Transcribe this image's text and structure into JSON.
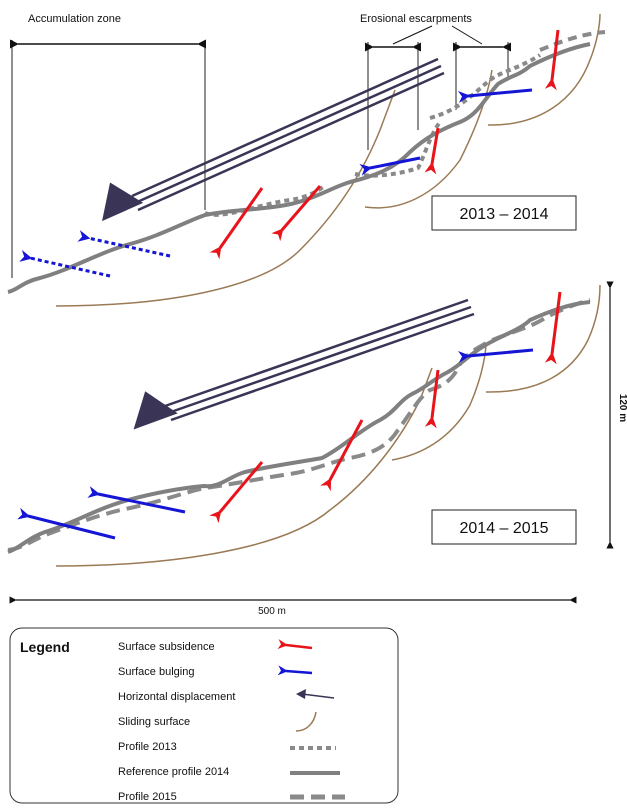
{
  "labels": {
    "accumulation_zone": "Accumulation zone",
    "erosional_escarpments": "Erosional escarpments",
    "period_1": "2013 – 2014",
    "period_2": "2014 – 2015",
    "scale_vertical": "120 m",
    "scale_horizontal": "500 m"
  },
  "legend": {
    "title": "Legend",
    "items": [
      {
        "label": "Surface subsidence",
        "symbol": "red-arrow-icon",
        "color": "#e8141b"
      },
      {
        "label": "Surface bulging",
        "symbol": "blue-arrow-icon",
        "color": "#1515d6"
      },
      {
        "label": "Horizontal displacement",
        "symbol": "dark-arrow-icon",
        "color": "#3a3556"
      },
      {
        "label": "Sliding surface",
        "symbol": "brown-curve-icon",
        "color": "#9a7a55"
      },
      {
        "label": "Profile 2013",
        "symbol": "dotted-line-icon",
        "color": "#808080"
      },
      {
        "label": "Reference profile 2014",
        "symbol": "solid-line-icon",
        "color": "#808080"
      },
      {
        "label": "Profile 2015",
        "symbol": "dashed-line-icon",
        "color": "#808080"
      }
    ]
  }
}
